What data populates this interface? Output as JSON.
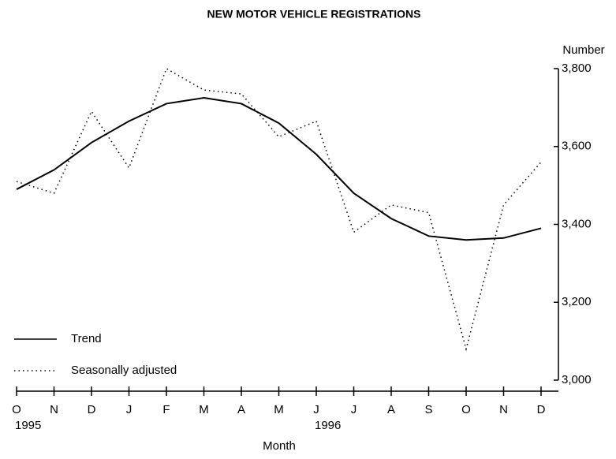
{
  "chart_data": {
    "type": "line",
    "title": "NEW MOTOR VEHICLE REGISTRATIONS",
    "y_label": "Number",
    "x_label": "Month",
    "categories": [
      "O",
      "N",
      "D",
      "J",
      "F",
      "M",
      "A",
      "M",
      "J",
      "J",
      "A",
      "S",
      "O",
      "N",
      "D"
    ],
    "year_labels": [
      "1995",
      "1996"
    ],
    "series": [
      {
        "name": "Trend",
        "color": "#000000",
        "style": "solid",
        "values": [
          3490,
          3540,
          3610,
          3665,
          3710,
          3725,
          3710,
          3660,
          3580,
          3480,
          3415,
          3370,
          3360,
          3365,
          3390
        ]
      },
      {
        "name": "Seasonally adjusted",
        "color": "#000000",
        "style": "dotted",
        "values": [
          3510,
          3480,
          3690,
          3545,
          3800,
          3745,
          3735,
          3625,
          3665,
          3380,
          3450,
          3430,
          3080,
          3450,
          3560
        ]
      }
    ],
    "ylim": [
      3000,
      3800
    ],
    "yticks": [
      {
        "value": 3000,
        "label": "3,000"
      },
      {
        "value": 3200,
        "label": "3,200"
      },
      {
        "value": 3400,
        "label": "3,400"
      },
      {
        "value": 3600,
        "label": "3,600"
      },
      {
        "value": 3800,
        "label": "3,800"
      }
    ],
    "legend": "lower left",
    "grid": false
  }
}
